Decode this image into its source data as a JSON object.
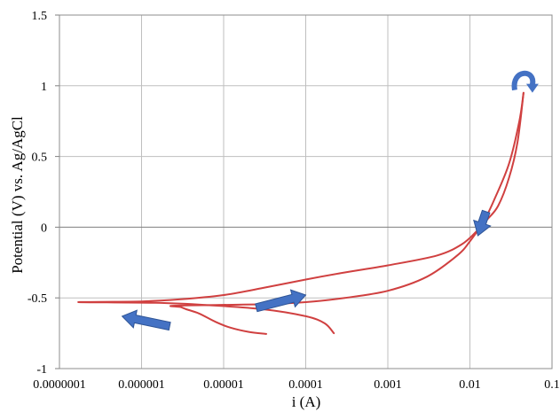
{
  "chart_data": {
    "type": "line",
    "title": "",
    "xlabel": "i (A)",
    "ylabel": "Potential (V)  vs. Ag/AgCl",
    "x_scale": "log",
    "xlim": [
      1e-07,
      0.1
    ],
    "ylim": [
      -1,
      1.5
    ],
    "x_ticks": [
      1e-07,
      1e-06,
      1e-05,
      0.0001,
      0.001,
      0.01,
      0.1
    ],
    "x_tick_labels": [
      "0.0000001",
      "0.000001",
      "0.00001",
      "0.0001",
      "0.001",
      "0.01",
      "0.1"
    ],
    "y_ticks": [
      -1,
      -0.5,
      0,
      0.5,
      1,
      1.5
    ],
    "y_tick_labels": [
      "-1",
      "-0.5",
      "0",
      "0.5",
      "1",
      "1.5"
    ],
    "grid": true,
    "legend": "none",
    "series_color": "#d04040",
    "arrow_color": "#4472c4",
    "series": [
      {
        "points": [
          [
            3.3e-05,
            -0.755
          ],
          [
            2e-05,
            -0.74
          ],
          [
            1.2e-05,
            -0.71
          ],
          [
            8e-06,
            -0.67
          ],
          [
            5e-06,
            -0.61
          ],
          [
            3.5e-06,
            -0.58
          ],
          [
            3e-06,
            -0.565
          ],
          [
            2.6e-06,
            -0.555
          ],
          [
            3e-05,
            -0.545
          ],
          [
            0.0001,
            -0.53
          ],
          [
            0.0003,
            -0.5
          ],
          [
            0.001,
            -0.45
          ],
          [
            0.003,
            -0.35
          ],
          [
            0.007,
            -0.2
          ],
          [
            0.01,
            -0.1
          ],
          [
            0.015,
            0.05
          ],
          [
            0.02,
            0.2
          ],
          [
            0.03,
            0.45
          ],
          [
            0.04,
            0.75
          ],
          [
            0.045,
            0.95
          ]
        ]
      },
      {
        "points": [
          [
            0.045,
            0.95
          ],
          [
            0.038,
            0.6
          ],
          [
            0.03,
            0.35
          ],
          [
            0.022,
            0.15
          ],
          [
            0.016,
            0.05
          ],
          [
            0.012,
            -0.03
          ],
          [
            0.008,
            -0.12
          ],
          [
            0.004,
            -0.2
          ],
          [
            0.001,
            -0.27
          ],
          [
            0.0003,
            -0.32
          ],
          [
            0.0001,
            -0.37
          ],
          [
            3e-05,
            -0.43
          ],
          [
            1e-05,
            -0.48
          ],
          [
            3e-06,
            -0.51
          ],
          [
            1e-06,
            -0.525
          ],
          [
            1.7e-07,
            -0.53
          ],
          [
            1.5e-06,
            -0.535
          ],
          [
            6e-06,
            -0.55
          ],
          [
            3e-05,
            -0.58
          ],
          [
            0.0001,
            -0.63
          ],
          [
            0.00017,
            -0.68
          ],
          [
            0.00022,
            -0.75
          ]
        ]
      }
    ]
  }
}
